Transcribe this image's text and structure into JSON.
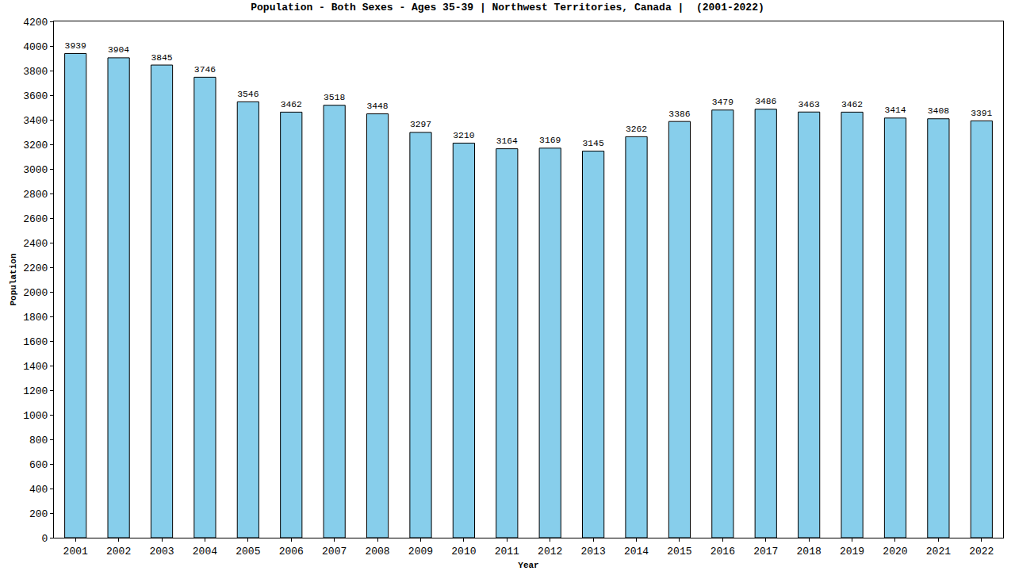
{
  "chart_data": {
    "type": "bar",
    "title": "Population - Both Sexes - Ages 35-39 | Northwest Territories, Canada |  (2001-2022)",
    "x_label": "Year",
    "y_label": "Population",
    "categories": [
      "2001",
      "2002",
      "2003",
      "2004",
      "2005",
      "2006",
      "2007",
      "2008",
      "2009",
      "2010",
      "2011",
      "2012",
      "2013",
      "2014",
      "2015",
      "2016",
      "2017",
      "2018",
      "2019",
      "2020",
      "2021",
      "2022"
    ],
    "values": [
      3939,
      3904,
      3845,
      3746,
      3546,
      3462,
      3518,
      3448,
      3297,
      3210,
      3164,
      3169,
      3145,
      3262,
      3386,
      3479,
      3486,
      3463,
      3462,
      3414,
      3408,
      3391
    ],
    "color": "#87ceeb",
    "ylim": [
      0,
      4200
    ],
    "yticks": [
      0,
      200,
      400,
      600,
      800,
      1000,
      1200,
      1400,
      1600,
      1800,
      2000,
      2200,
      2400,
      2600,
      2800,
      3000,
      3200,
      3400,
      3600,
      3800,
      4000,
      4200
    ],
    "grid": false,
    "data_labels": true
  }
}
